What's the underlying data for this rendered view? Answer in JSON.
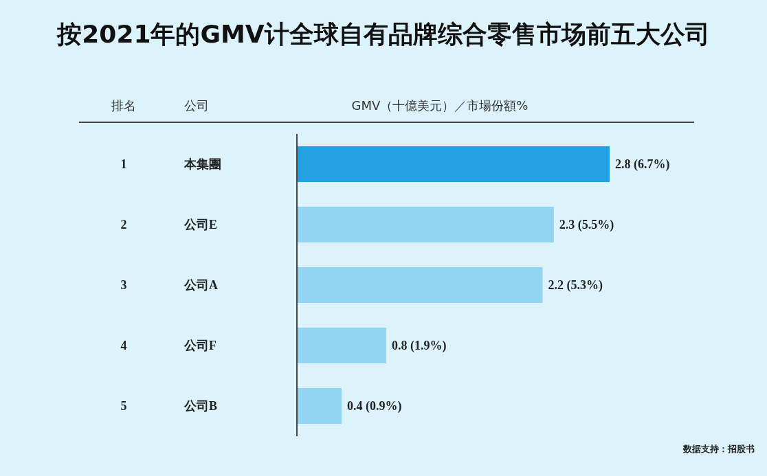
{
  "chart_data": {
    "type": "bar",
    "orientation": "horizontal",
    "title": "按2021年的GMV计全球自有品牌综合零售市场前五大公司",
    "xlabel": "GMV（十億美元）／市場份額%",
    "categories": [
      "本集團",
      "公司E",
      "公司A",
      "公司F",
      "公司B"
    ],
    "values": [
      2.8,
      2.3,
      2.2,
      0.8,
      0.4
    ],
    "colors": [
      "#22a2e0",
      "#92d4f2",
      "#92d4f2",
      "#92d4f2",
      "#92d4f2"
    ],
    "value_labels": [
      "2.8 (6.7%)",
      "2.3 (5.5%)",
      "2.2 (5.3%)",
      "0.8 (1.9%)",
      "0.4 (0.9%)"
    ],
    "annotations": [
      "排名",
      "公司",
      "数据支持：招股书",
      "1",
      "2",
      "3",
      "4",
      "5"
    ],
    "grid": false,
    "legend": false
  }
}
